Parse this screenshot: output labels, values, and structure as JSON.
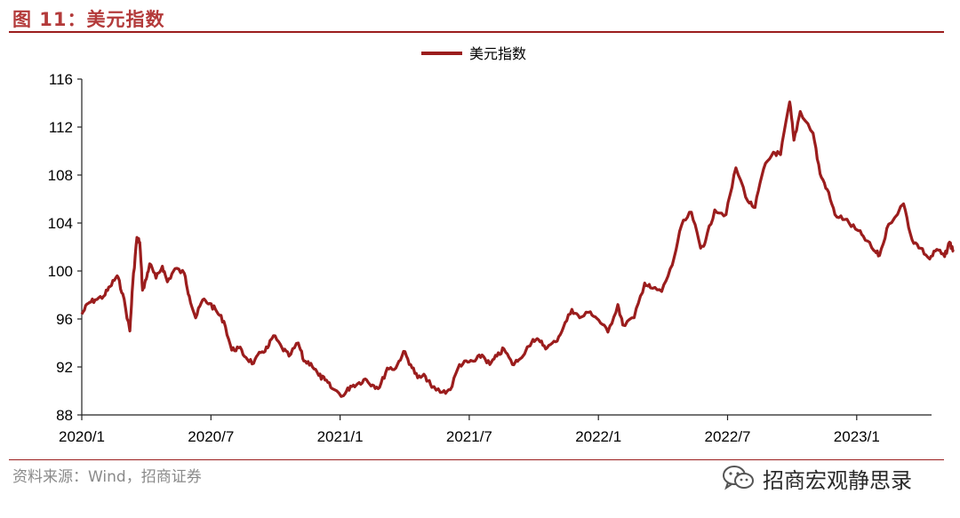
{
  "figure": {
    "title": "图 11：美元指数",
    "source": "资料来源：Wind，招商证券",
    "watermark": "招商宏观静思录"
  },
  "colors": {
    "accent": "#9b1d1d",
    "title": "#b33a3a",
    "series": "#9b1d1d"
  },
  "chart_data": {
    "type": "line",
    "title": "",
    "xlabel": "",
    "ylabel": "",
    "ylim": [
      88,
      116
    ],
    "yticks": [
      "88",
      "92",
      "96",
      "100",
      "104",
      "108",
      "112",
      "116"
    ],
    "xticks": [
      "2020/1",
      "2020/7",
      "2021/1",
      "2021/7",
      "2022/1",
      "2022/7",
      "2023/1"
    ],
    "legend": "top-center",
    "grid": false,
    "series": [
      {
        "name": "美元指数",
        "points": [
          [
            "2020/01/01",
            96.4
          ],
          [
            "2020/01/10",
            97.3
          ],
          [
            "2020/01/20",
            97.6
          ],
          [
            "2020/02/01",
            97.9
          ],
          [
            "2020/02/10",
            98.7
          ],
          [
            "2020/02/20",
            99.6
          ],
          [
            "2020/02/28",
            98.1
          ],
          [
            "2020/03/09",
            95.0
          ],
          [
            "2020/03/13",
            98.9
          ],
          [
            "2020/03/19",
            102.8
          ],
          [
            "2020/03/23",
            102.4
          ],
          [
            "2020/03/27",
            98.4
          ],
          [
            "2020/04/01",
            99.3
          ],
          [
            "2020/04/06",
            100.6
          ],
          [
            "2020/04/15",
            99.4
          ],
          [
            "2020/04/24",
            100.4
          ],
          [
            "2020/05/01",
            99.1
          ],
          [
            "2020/05/12",
            100.2
          ],
          [
            "2020/05/25",
            99.8
          ],
          [
            "2020/06/01",
            97.9
          ],
          [
            "2020/06/10",
            96.1
          ],
          [
            "2020/06/20",
            97.6
          ],
          [
            "2020/06/30",
            97.3
          ],
          [
            "2020/07/10",
            96.6
          ],
          [
            "2020/07/20",
            95.8
          ],
          [
            "2020/07/31",
            93.4
          ],
          [
            "2020/08/10",
            93.6
          ],
          [
            "2020/08/20",
            92.8
          ],
          [
            "2020/08/31",
            92.3
          ],
          [
            "2020/09/10",
            93.2
          ],
          [
            "2020/09/20",
            93.6
          ],
          [
            "2020/09/28",
            94.6
          ],
          [
            "2020/10/10",
            93.6
          ],
          [
            "2020/10/20",
            92.9
          ],
          [
            "2020/11/02",
            94.0
          ],
          [
            "2020/11/10",
            92.5
          ],
          [
            "2020/11/20",
            92.3
          ],
          [
            "2020/12/01",
            91.3
          ],
          [
            "2020/12/10",
            90.9
          ],
          [
            "2020/12/20",
            90.2
          ],
          [
            "2021/01/05",
            89.6
          ],
          [
            "2021/01/15",
            90.4
          ],
          [
            "2021/01/25",
            90.6
          ],
          [
            "2021/02/05",
            91.0
          ],
          [
            "2021/02/15",
            90.5
          ],
          [
            "2021/02/25",
            90.3
          ],
          [
            "2021/03/08",
            91.9
          ],
          [
            "2021/03/20",
            91.9
          ],
          [
            "2021/03/31",
            93.3
          ],
          [
            "2021/04/10",
            92.2
          ],
          [
            "2021/04/20",
            91.1
          ],
          [
            "2021/05/01",
            91.2
          ],
          [
            "2021/05/10",
            90.3
          ],
          [
            "2021/05/25",
            89.9
          ],
          [
            "2021/06/05",
            90.1
          ],
          [
            "2021/06/18",
            92.2
          ],
          [
            "2021/06/30",
            92.4
          ],
          [
            "2021/07/10",
            92.5
          ],
          [
            "2021/07/20",
            93.0
          ],
          [
            "2021/07/31",
            92.2
          ],
          [
            "2021/08/10",
            92.9
          ],
          [
            "2021/08/20",
            93.5
          ],
          [
            "2021/09/01",
            92.2
          ],
          [
            "2021/09/10",
            92.6
          ],
          [
            "2021/09/30",
            94.3
          ],
          [
            "2021/10/10",
            94.1
          ],
          [
            "2021/10/20",
            93.6
          ],
          [
            "2021/11/01",
            94.1
          ],
          [
            "2021/11/12",
            95.3
          ],
          [
            "2021/11/24",
            96.8
          ],
          [
            "2021/12/05",
            96.1
          ],
          [
            "2021/12/20",
            96.6
          ],
          [
            "2022/01/01",
            95.9
          ],
          [
            "2022/01/14",
            94.9
          ],
          [
            "2022/01/28",
            97.2
          ],
          [
            "2022/02/04",
            95.5
          ],
          [
            "2022/02/20",
            96.1
          ],
          [
            "2022/03/07",
            99.0
          ],
          [
            "2022/03/15",
            98.6
          ],
          [
            "2022/03/31",
            98.3
          ],
          [
            "2022/04/15",
            100.5
          ],
          [
            "2022/04/28",
            103.8
          ],
          [
            "2022/05/12",
            104.9
          ],
          [
            "2022/05/25",
            101.9
          ],
          [
            "2022/06/01",
            102.5
          ],
          [
            "2022/06/14",
            105.1
          ],
          [
            "2022/06/30",
            104.7
          ],
          [
            "2022/07/14",
            108.6
          ],
          [
            "2022/07/31",
            105.8
          ],
          [
            "2022/08/10",
            105.3
          ],
          [
            "2022/08/22",
            108.5
          ],
          [
            "2022/09/05",
            109.9
          ],
          [
            "2022/09/15",
            109.7
          ],
          [
            "2022/09/28",
            114.1
          ],
          [
            "2022/10/04",
            110.9
          ],
          [
            "2022/10/13",
            113.3
          ],
          [
            "2022/10/31",
            111.5
          ],
          [
            "2022/11/10",
            108.1
          ],
          [
            "2022/11/20",
            106.8
          ],
          [
            "2022/12/01",
            104.7
          ],
          [
            "2022/12/15",
            104.3
          ],
          [
            "2022/12/30",
            103.5
          ],
          [
            "2023/01/10",
            102.9
          ],
          [
            "2023/01/25",
            101.7
          ],
          [
            "2023/02/02",
            101.3
          ],
          [
            "2023/02/15",
            103.9
          ],
          [
            "2023/03/08",
            105.6
          ],
          [
            "2023/03/20",
            102.6
          ],
          [
            "2023/04/01",
            101.9
          ],
          [
            "2023/04/14",
            101.0
          ],
          [
            "2023/04/24",
            101.8
          ],
          [
            "2023/05/05",
            101.2
          ],
          [
            "2023/05/12",
            102.4
          ],
          [
            "2023/05/18",
            101.6
          ]
        ]
      }
    ]
  }
}
